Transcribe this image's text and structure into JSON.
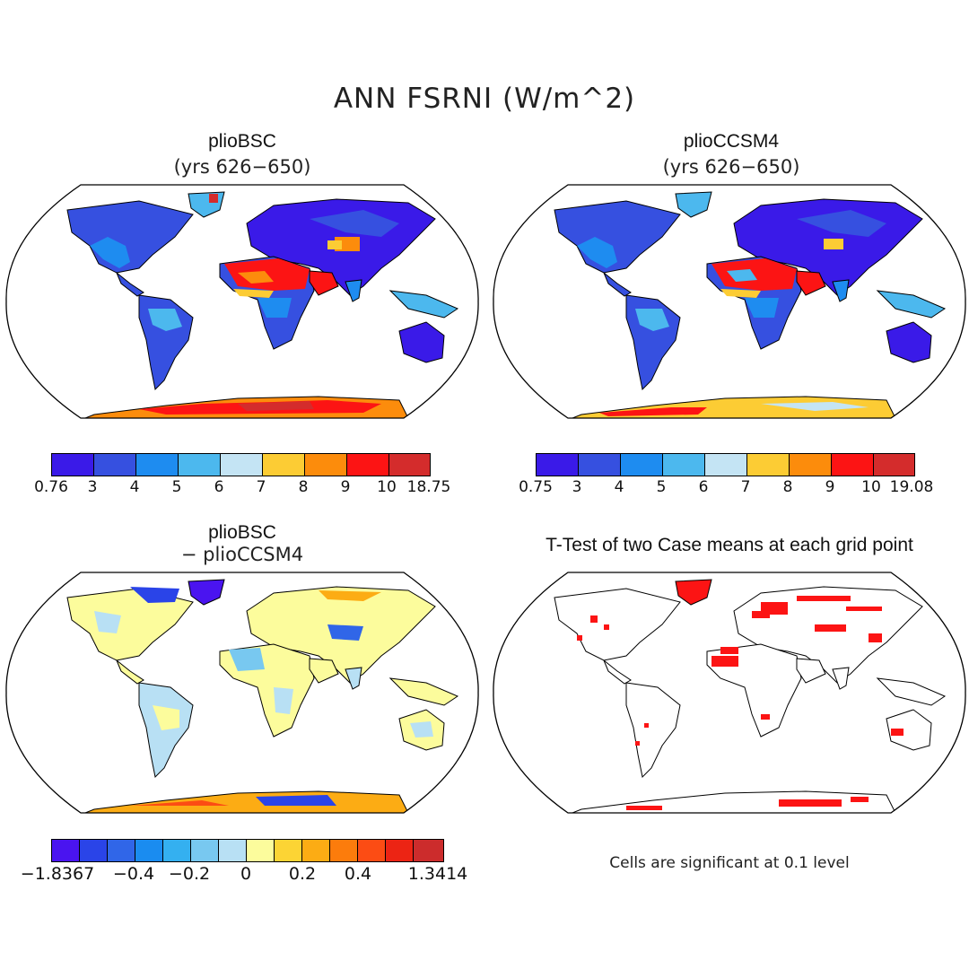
{
  "title": "ANN FSRNI (W/m^2)",
  "panels": {
    "top_left": {
      "title": "plioBSC",
      "subtitle": "(yrs 626−650)"
    },
    "top_right": {
      "title": "plioCCSM4",
      "subtitle": "(yrs 626−650)"
    },
    "bottom_left": {
      "title": "plioBSC",
      "subtitle": "− plioCCSM4"
    },
    "bottom_right": {
      "title": "T-Test of two Case means at each grid point",
      "note": "Cells are significant at 0.1 level"
    }
  },
  "colorbars": {
    "top_left": {
      "labels": [
        "0.76",
        "3",
        "4",
        "5",
        "6",
        "7",
        "8",
        "9",
        "10",
        "18.75"
      ],
      "colors": [
        "#3a1ae8",
        "#3650e0",
        "#1e8cf0",
        "#4cb8ee",
        "#c4e4f4",
        "#fccc34",
        "#fc8c0c",
        "#fc1414",
        "#d42c2c"
      ]
    },
    "top_right": {
      "labels": [
        "0.75",
        "3",
        "4",
        "5",
        "6",
        "7",
        "8",
        "9",
        "10",
        "19.08"
      ],
      "colors": [
        "#3a1ae8",
        "#3650e0",
        "#1e8cf0",
        "#4cb8ee",
        "#c4e4f4",
        "#fccc34",
        "#fc8c0c",
        "#fc1414",
        "#d42c2c"
      ]
    },
    "bottom_left": {
      "labels": [
        "−1.8367",
        "−0.4",
        "−0.2",
        "0",
        "0.2",
        "0.4",
        "1.3414"
      ],
      "colors": [
        "#4a14f0",
        "#2a44e8",
        "#3066e8",
        "#1a8cf0",
        "#34b0f0",
        "#78c8f0",
        "#b8e0f4",
        "#fcfc9c",
        "#fcd434",
        "#fcac14",
        "#fc7c0c",
        "#fc4c14",
        "#ec2414",
        "#cc2c2c"
      ]
    }
  },
  "chart_data": {
    "type": "map",
    "projection": "Robinson",
    "variable": "ANN FSRNI (W/m^2)",
    "maps": [
      {
        "panel": "plioBSC (yrs 626-650)",
        "colorbar_min": 0.76,
        "colorbar_max": 18.75,
        "levels": [
          3,
          4,
          5,
          6,
          7,
          8,
          9,
          10
        ]
      },
      {
        "panel": "plioCCSM4 (yrs 626-650)",
        "colorbar_min": 0.75,
        "colorbar_max": 19.08,
        "levels": [
          3,
          4,
          5,
          6,
          7,
          8,
          9,
          10
        ]
      },
      {
        "panel": "plioBSC - plioCCSM4",
        "colorbar_min": -1.8367,
        "colorbar_max": 1.3414
      },
      {
        "panel": "T-Test of two Case means at each grid point",
        "significance_level": 0.1
      }
    ]
  }
}
